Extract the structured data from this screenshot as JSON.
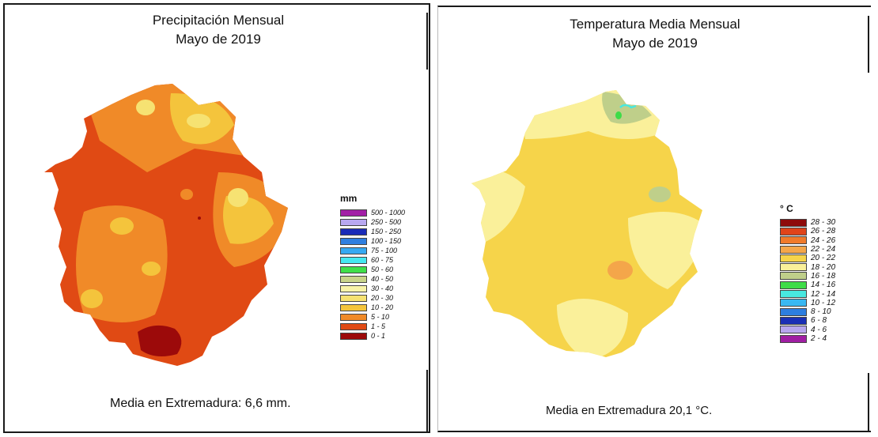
{
  "precipitation": {
    "title_line1": "Precipitación Mensual",
    "title_line2": "Mayo de 2019",
    "legend_unit": "mm",
    "legend": [
      {
        "label": "500 - 1000",
        "color": "#a21ea6"
      },
      {
        "label": "250 - 500",
        "color": "#b8a8f0"
      },
      {
        "label": "150 - 250",
        "color": "#1a2bb8"
      },
      {
        "label": "100 - 150",
        "color": "#2f7fe0"
      },
      {
        "label": "75 - 100",
        "color": "#36a9f2"
      },
      {
        "label": "60 - 75",
        "color": "#45e8f0"
      },
      {
        "label": "50 - 60",
        "color": "#3fe04a"
      },
      {
        "label": "40 - 50",
        "color": "#c8d48a"
      },
      {
        "label": "30 - 40",
        "color": "#f7f3a8"
      },
      {
        "label": "20 - 30",
        "color": "#f6e272"
      },
      {
        "label": "10 - 20",
        "color": "#f4c43c"
      },
      {
        "label": "5 - 10",
        "color": "#f08a28"
      },
      {
        "label": "1 - 5",
        "color": "#e04a14"
      },
      {
        "label": "0 - 1",
        "color": "#9c0a0a"
      }
    ],
    "footer": "Media en Extremadura: 6,6 mm."
  },
  "temperature": {
    "title_line1": "Temperatura Media Mensual",
    "title_line2": "Mayo de 2019",
    "legend_unit": "° C",
    "legend": [
      {
        "label": "28 - 30",
        "color": "#8e0b0b"
      },
      {
        "label": "26 - 28",
        "color": "#e0441a"
      },
      {
        "label": "24 - 26",
        "color": "#f07a2a"
      },
      {
        "label": "22 - 24",
        "color": "#f4a64a"
      },
      {
        "label": "20 - 22",
        "color": "#f6d44a"
      },
      {
        "label": "18 - 20",
        "color": "#faf09a"
      },
      {
        "label": "16 - 18",
        "color": "#bfcf8a"
      },
      {
        "label": "14 - 16",
        "color": "#3edc48"
      },
      {
        "label": "12 - 14",
        "color": "#48e8e0"
      },
      {
        "label": "10 - 12",
        "color": "#3ab8f2"
      },
      {
        "label": "8 - 10",
        "color": "#2d7ee0"
      },
      {
        "label": "6 - 8",
        "color": "#1a2fb6"
      },
      {
        "label": "4 - 6",
        "color": "#b7a6ee"
      },
      {
        "label": "2 - 4",
        "color": "#a01ea3"
      }
    ],
    "footer": "Media en Extremadura 20,1 °C."
  }
}
